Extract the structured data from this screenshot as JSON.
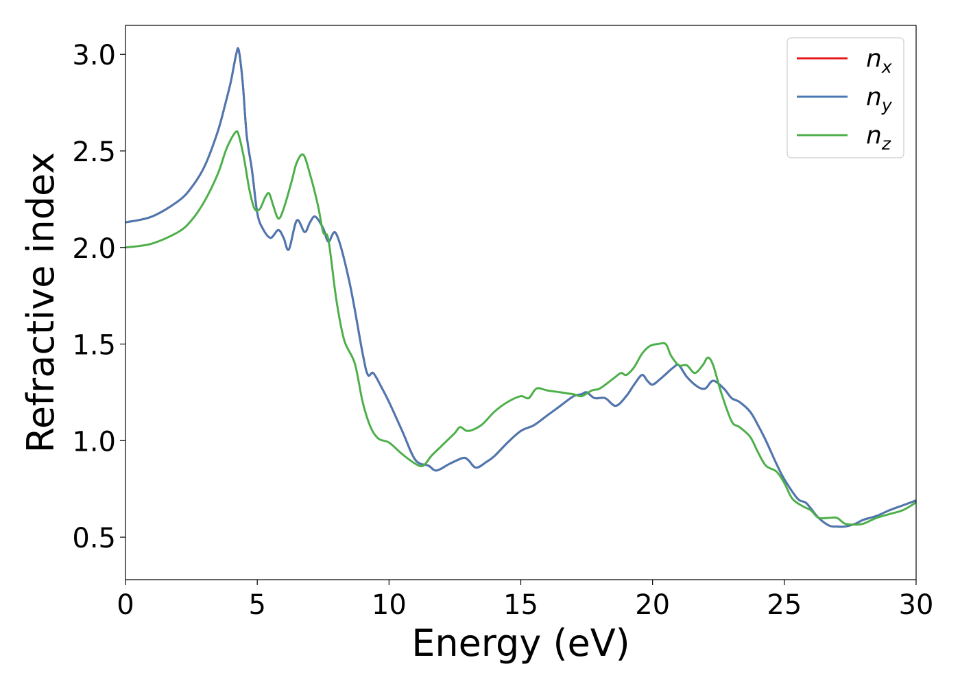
{
  "chart_data": {
    "type": "line",
    "xlabel": "Energy (eV)",
    "ylabel": "Refractive index",
    "xlim": [
      0,
      30
    ],
    "ylim": [
      0.28,
      3.15
    ],
    "xticks": [
      0,
      5,
      10,
      15,
      20,
      25,
      30
    ],
    "xtick_labels": [
      "0",
      "5",
      "10",
      "15",
      "20",
      "25",
      "30"
    ],
    "yticks": [
      0.5,
      1.0,
      1.5,
      2.0,
      2.5,
      3.0
    ],
    "ytick_labels": [
      "0.5",
      "1.0",
      "1.5",
      "2.0",
      "2.5",
      "3.0"
    ],
    "grid": false,
    "legend_position": "upper right",
    "series": [
      {
        "name": "n_x",
        "label_base": "n",
        "label_sub": "x",
        "color": "#e41a1c",
        "x": [
          0,
          1,
          2,
          2.5,
          3,
          3.5,
          3.8,
          4.0,
          4.2,
          4.3,
          4.45,
          4.6,
          4.8,
          5.0,
          5.2,
          5.5,
          5.8,
          6.0,
          6.2,
          6.5,
          6.8,
          7.0,
          7.2,
          7.5,
          7.7,
          8.0,
          8.5,
          9.0,
          9.2,
          9.4,
          9.7,
          10.0,
          10.5,
          11.0,
          11.5,
          11.8,
          12.3,
          12.8,
          13.0,
          13.3,
          13.7,
          14.0,
          14.5,
          15.0,
          15.5,
          16.0,
          16.5,
          17.0,
          17.3,
          17.5,
          17.8,
          18.2,
          18.6,
          19.0,
          19.3,
          19.6,
          19.8,
          20.0,
          20.3,
          20.8,
          21.0,
          21.3,
          21.7,
          22.0,
          22.3,
          22.7,
          23.0,
          23.3,
          23.7,
          24.0,
          24.3,
          24.7,
          25.0,
          25.5,
          25.8,
          26.0,
          26.3,
          26.7,
          27.0,
          27.3,
          27.7,
          28.0,
          28.5,
          29.0,
          29.5,
          30.0
        ],
        "y": [
          2.13,
          2.16,
          2.24,
          2.31,
          2.42,
          2.6,
          2.75,
          2.86,
          3.0,
          3.02,
          2.85,
          2.58,
          2.4,
          2.18,
          2.1,
          2.05,
          2.09,
          2.05,
          1.99,
          2.14,
          2.08,
          2.13,
          2.16,
          2.1,
          2.03,
          2.07,
          1.82,
          1.45,
          1.34,
          1.35,
          1.28,
          1.2,
          1.05,
          0.9,
          0.87,
          0.845,
          0.88,
          0.91,
          0.9,
          0.86,
          0.89,
          0.92,
          0.99,
          1.05,
          1.08,
          1.13,
          1.18,
          1.23,
          1.24,
          1.25,
          1.22,
          1.22,
          1.18,
          1.23,
          1.29,
          1.34,
          1.31,
          1.29,
          1.32,
          1.38,
          1.39,
          1.33,
          1.28,
          1.27,
          1.31,
          1.27,
          1.22,
          1.2,
          1.15,
          1.08,
          1.0,
          0.88,
          0.8,
          0.7,
          0.68,
          0.65,
          0.6,
          0.56,
          0.555,
          0.555,
          0.57,
          0.59,
          0.61,
          0.64,
          0.665,
          0.69
        ]
      },
      {
        "name": "n_y",
        "label_base": "n",
        "label_sub": "y",
        "color": "#4a78b2",
        "x": [
          0,
          1,
          2,
          2.5,
          3,
          3.5,
          3.8,
          4.0,
          4.2,
          4.3,
          4.45,
          4.6,
          4.8,
          5.0,
          5.2,
          5.5,
          5.8,
          6.0,
          6.2,
          6.5,
          6.8,
          7.0,
          7.2,
          7.5,
          7.7,
          8.0,
          8.5,
          9.0,
          9.2,
          9.4,
          9.7,
          10.0,
          10.5,
          11.0,
          11.5,
          11.8,
          12.3,
          12.8,
          13.0,
          13.3,
          13.7,
          14.0,
          14.5,
          15.0,
          15.5,
          16.0,
          16.5,
          17.0,
          17.3,
          17.5,
          17.8,
          18.2,
          18.6,
          19.0,
          19.3,
          19.6,
          19.8,
          20.0,
          20.3,
          20.8,
          21.0,
          21.3,
          21.7,
          22.0,
          22.3,
          22.7,
          23.0,
          23.3,
          23.7,
          24.0,
          24.3,
          24.7,
          25.0,
          25.5,
          25.8,
          26.0,
          26.3,
          26.7,
          27.0,
          27.3,
          27.7,
          28.0,
          28.5,
          29.0,
          29.5,
          30.0
        ],
        "y": [
          2.13,
          2.16,
          2.24,
          2.31,
          2.42,
          2.6,
          2.75,
          2.86,
          3.0,
          3.02,
          2.85,
          2.58,
          2.4,
          2.18,
          2.1,
          2.05,
          2.09,
          2.05,
          1.99,
          2.14,
          2.08,
          2.13,
          2.16,
          2.1,
          2.03,
          2.07,
          1.82,
          1.45,
          1.34,
          1.35,
          1.28,
          1.2,
          1.05,
          0.9,
          0.87,
          0.845,
          0.88,
          0.91,
          0.9,
          0.86,
          0.89,
          0.92,
          0.99,
          1.05,
          1.08,
          1.13,
          1.18,
          1.23,
          1.24,
          1.25,
          1.22,
          1.22,
          1.18,
          1.23,
          1.29,
          1.34,
          1.31,
          1.29,
          1.32,
          1.38,
          1.39,
          1.33,
          1.28,
          1.27,
          1.31,
          1.27,
          1.22,
          1.2,
          1.15,
          1.08,
          1.0,
          0.88,
          0.8,
          0.7,
          0.68,
          0.65,
          0.6,
          0.56,
          0.555,
          0.555,
          0.57,
          0.59,
          0.61,
          0.64,
          0.665,
          0.69
        ]
      },
      {
        "name": "n_z",
        "label_base": "n",
        "label_sub": "z",
        "color": "#4daf4a",
        "x": [
          0,
          1,
          2,
          2.5,
          3,
          3.5,
          3.8,
          4.0,
          4.2,
          4.3,
          4.5,
          4.7,
          4.9,
          5.1,
          5.3,
          5.45,
          5.6,
          5.8,
          6.0,
          6.3,
          6.5,
          6.75,
          7.0,
          7.3,
          7.5,
          7.7,
          8.0,
          8.3,
          8.7,
          9.0,
          9.3,
          9.6,
          10.0,
          10.5,
          11.0,
          11.3,
          11.6,
          11.9,
          12.2,
          12.5,
          12.7,
          13.0,
          13.5,
          14.0,
          14.5,
          15.0,
          15.3,
          15.6,
          16.0,
          16.5,
          17.0,
          17.3,
          17.7,
          18.0,
          18.5,
          18.8,
          19.0,
          19.3,
          19.6,
          19.9,
          20.2,
          20.5,
          20.7,
          21.0,
          21.3,
          21.6,
          21.9,
          22.1,
          22.3,
          22.6,
          23.0,
          23.3,
          23.7,
          24.0,
          24.3,
          24.7,
          25.0,
          25.3,
          25.7,
          26.0,
          26.3,
          26.7,
          27.0,
          27.3,
          27.7,
          28.0,
          28.5,
          29.0,
          29.5,
          30.0
        ],
        "y": [
          2.0,
          2.02,
          2.08,
          2.14,
          2.24,
          2.38,
          2.5,
          2.56,
          2.6,
          2.58,
          2.46,
          2.3,
          2.2,
          2.2,
          2.26,
          2.28,
          2.22,
          2.15,
          2.2,
          2.34,
          2.44,
          2.48,
          2.38,
          2.22,
          2.08,
          2.04,
          1.73,
          1.52,
          1.4,
          1.2,
          1.07,
          1.01,
          0.99,
          0.93,
          0.88,
          0.87,
          0.92,
          0.96,
          1.0,
          1.04,
          1.07,
          1.05,
          1.08,
          1.15,
          1.2,
          1.23,
          1.22,
          1.27,
          1.26,
          1.25,
          1.24,
          1.23,
          1.26,
          1.27,
          1.32,
          1.35,
          1.34,
          1.38,
          1.45,
          1.49,
          1.5,
          1.5,
          1.44,
          1.39,
          1.39,
          1.35,
          1.39,
          1.43,
          1.39,
          1.25,
          1.1,
          1.07,
          1.02,
          0.94,
          0.87,
          0.84,
          0.78,
          0.7,
          0.66,
          0.64,
          0.6,
          0.6,
          0.6,
          0.57,
          0.565,
          0.57,
          0.6,
          0.62,
          0.64,
          0.68
        ]
      }
    ]
  }
}
